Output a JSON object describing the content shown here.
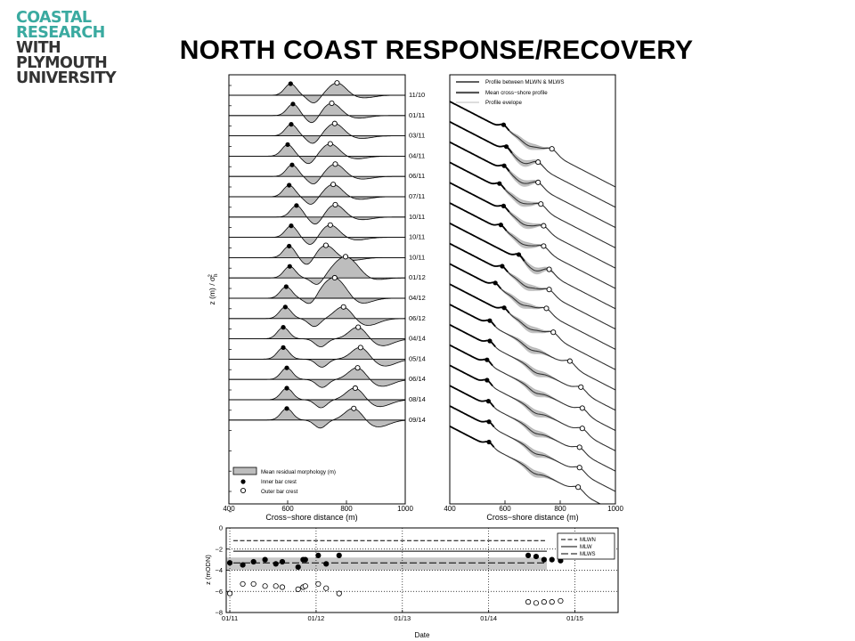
{
  "logo": {
    "lines": [
      "COASTAL",
      "RESEARCH",
      "WITH",
      "PLYMOUTH",
      "UNIVERSITY"
    ],
    "teal_color": "#3aaaa0",
    "dark_color": "#333333"
  },
  "title": "NORTH COAST RESPONSE/RECOVERY",
  "chart_data": [
    {
      "type": "area",
      "panel": "left",
      "xlabel": "Cross−shore distance (m)",
      "ylabel": "z (m) / σh²",
      "ylabel_parts": {
        "main": "z (m) / σ",
        "sub": "h",
        "sup": "2"
      },
      "xlim": [
        400,
        1000
      ],
      "xticks": [
        400,
        600,
        800,
        1000
      ],
      "profile_labels": [
        "11/10",
        "01/11",
        "03/11",
        "04/11",
        "06/11",
        "07/11",
        "10/11",
        "10/11",
        "10/11",
        "01/12",
        "04/12",
        "06/12",
        "04/14",
        "05/14",
        "06/14",
        "08/14",
        "09/14"
      ],
      "inner_bar_crest_x": [
        610,
        618,
        612,
        600,
        615,
        605,
        630,
        612,
        605,
        607,
        595,
        592,
        585,
        585,
        597,
        597,
        597
      ],
      "outer_bar_crest_x": [
        768,
        750,
        760,
        745,
        762,
        755,
        762,
        745,
        730,
        797,
        760,
        790,
        840,
        848,
        838,
        830,
        825
      ],
      "legend": [
        "Mean residual morphology (m)",
        "Inner bar crest",
        "Outer bar crest"
      ],
      "legend_position": "bottom-left"
    },
    {
      "type": "line",
      "panel": "right",
      "xlabel": "Cross−shore distance (m)",
      "xlim": [
        400,
        1000
      ],
      "xticks": [
        400,
        600,
        800,
        1000
      ],
      "inner_bar_crest_x": [
        595,
        605,
        597,
        580,
        595,
        585,
        650,
        590,
        565,
        597,
        545,
        545,
        535,
        535,
        540,
        542,
        542
      ],
      "outer_bar_crest_x": [
        770,
        720,
        720,
        730,
        740,
        740,
        760,
        760,
        750,
        775,
        835,
        875,
        880,
        880,
        870,
        870,
        865
      ],
      "legend": [
        "Profile between MLWN & MLWS",
        "Mean cross−shore profile",
        "Profile evelope"
      ],
      "legend_position": "top-right"
    },
    {
      "type": "scatter",
      "panel": "bottom",
      "xlabel": "Date",
      "ylabel": "z (mODN)",
      "ylim": [
        -8,
        0
      ],
      "yticks": [
        0,
        -2,
        -4,
        -6,
        -8
      ],
      "xticks": [
        "01/11",
        "01/12",
        "01/13",
        "01/14",
        "01/15"
      ],
      "xlim_months": [
        -0.5,
        54
      ],
      "reference_levels": {
        "MLWN": -1.2,
        "MLW": -2.2,
        "MLWS": -3.3
      },
      "band": [
        -4.0,
        -2.8
      ],
      "grid": "dotted",
      "legend": [
        "MLWN",
        "MLW",
        "MLWS"
      ],
      "legend_position": "top-right",
      "series": [
        {
          "name": "Inner bar crest",
          "x": [
            0,
            1.8,
            3.3,
            4.9,
            6.4,
            7.3,
            9.5,
            10.2,
            10.5,
            12.3,
            13.4,
            15.2
          ],
          "y": [
            -3.3,
            -3.5,
            -3.2,
            -3.0,
            -3.4,
            -3.2,
            -3.7,
            -3.0,
            -3.0,
            -2.6,
            -3.4,
            -2.6
          ],
          "marker": "filled"
        },
        {
          "name": "Outer bar crest",
          "x": [
            0,
            1.8,
            3.3,
            4.9,
            6.4,
            7.3,
            9.5,
            10.2,
            10.5,
            12.3,
            13.4,
            15.2
          ],
          "y": [
            -6.2,
            -5.3,
            -5.3,
            -5.5,
            -5.5,
            -5.6,
            -5.8,
            -5.6,
            -5.5,
            -5.3,
            -5.7,
            -6.2
          ],
          "marker": "hollow"
        },
        {
          "name": "Inner bar crest 2014",
          "x": [
            41.5,
            42.6,
            43.7,
            44.8,
            46.0
          ],
          "y": [
            -2.6,
            -2.7,
            -3.0,
            -3.0,
            -3.1
          ],
          "marker": "filled"
        },
        {
          "name": "Outer bar crest 2014",
          "x": [
            41.5,
            42.6,
            43.7,
            44.8,
            46.0
          ],
          "y": [
            -7.0,
            -7.1,
            -7.0,
            -7.0,
            -6.9
          ],
          "marker": "hollow"
        }
      ]
    }
  ]
}
